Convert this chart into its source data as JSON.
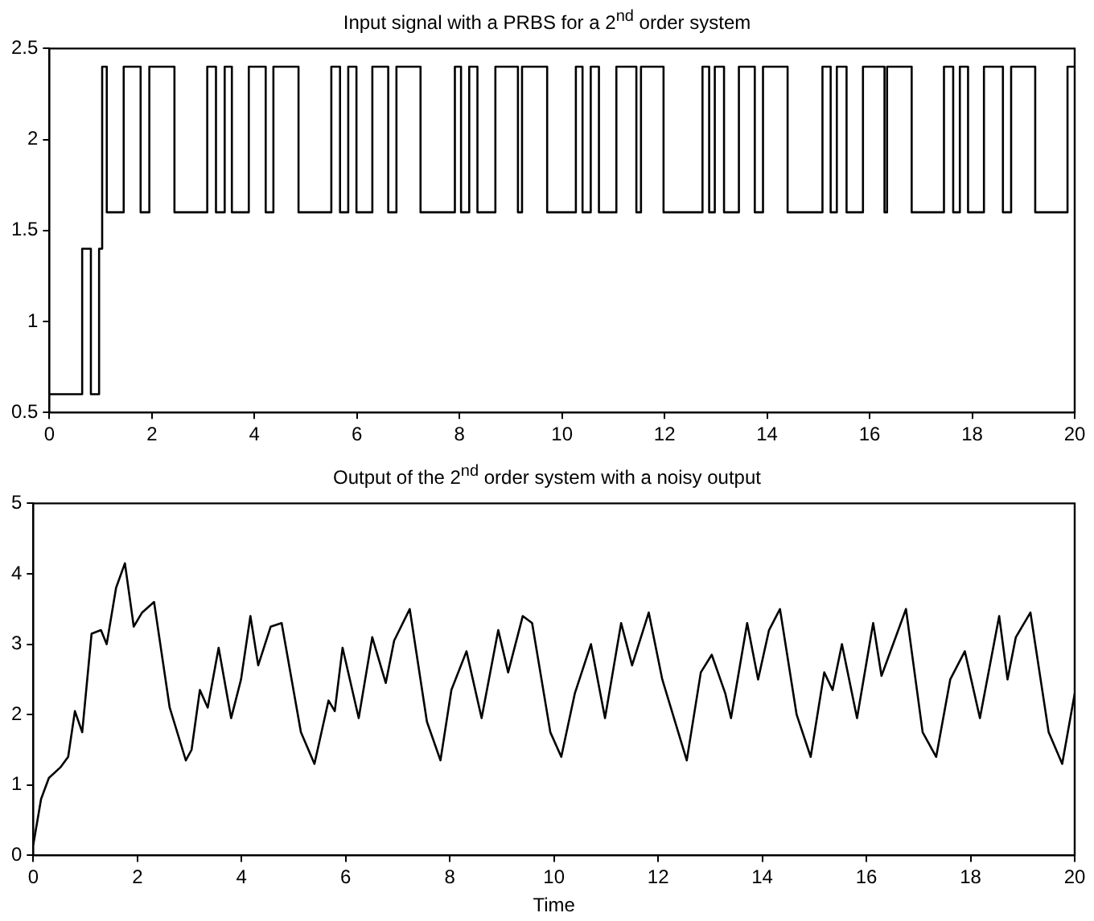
{
  "chart_data": [
    {
      "type": "step",
      "title": "Input signal with a PRBS for a 2$^{nd}$ order system",
      "xlim": [
        0,
        20
      ],
      "ylim": [
        0.5,
        2.5
      ],
      "xticks": [
        0,
        2,
        4,
        6,
        8,
        10,
        12,
        14,
        16,
        18,
        20
      ],
      "yticks": [
        0.5,
        1,
        1.5,
        2,
        2.5
      ],
      "x": [
        0,
        0.64,
        0.81,
        0.97,
        1.03,
        1.12,
        1.45,
        1.78,
        1.95,
        2.44,
        3.08,
        3.25,
        3.42,
        3.56,
        3.89,
        4.22,
        4.37,
        4.86,
        5.5,
        5.67,
        5.83,
        5.99,
        6.3,
        6.61,
        6.77,
        7.24,
        7.91,
        8.03,
        8.19,
        8.35,
        8.7,
        9.14,
        9.22,
        9.71,
        10.27,
        10.4,
        10.56,
        10.72,
        11.06,
        11.45,
        11.54,
        11.98,
        12.74,
        12.87,
        12.98,
        13.16,
        13.45,
        13.76,
        13.92,
        14.4,
        15.08,
        15.24,
        15.36,
        15.55,
        15.87,
        16.29,
        16.34,
        16.82,
        17.45,
        17.63,
        17.76,
        17.92,
        18.23,
        18.6,
        18.76,
        19.23,
        19.86,
        20
      ],
      "series": [
        {
          "color": "#000000",
          "values": [
            0.6,
            1.4,
            0.6,
            1.4,
            2.4,
            1.6,
            2.4,
            1.6,
            2.4,
            1.6,
            2.4,
            1.6,
            2.4,
            1.6,
            2.4,
            1.6,
            2.4,
            1.6,
            2.4,
            1.6,
            2.4,
            1.6,
            2.4,
            1.6,
            2.4,
            1.6,
            2.4,
            1.6,
            2.4,
            1.6,
            2.4,
            1.6,
            2.4,
            1.6,
            2.4,
            1.6,
            2.4,
            1.6,
            2.4,
            1.6,
            2.4,
            1.6,
            2.4,
            1.6,
            2.4,
            1.6,
            2.4,
            1.6,
            2.4,
            1.6,
            2.4,
            1.6,
            2.4,
            1.6,
            2.4,
            1.6,
            2.4,
            1.6,
            2.4,
            1.6,
            2.4,
            1.6,
            2.4,
            1.6,
            2.4,
            1.6,
            2.4,
            2.4
          ]
        }
      ]
    },
    {
      "type": "line",
      "title": "Output of the 2$^{nd}$ order system with a noisy output",
      "xlabel": "Time",
      "xlim": [
        0,
        20
      ],
      "ylim": [
        0,
        5
      ],
      "xticks": [
        0,
        2,
        4,
        6,
        8,
        10,
        12,
        14,
        16,
        18,
        20
      ],
      "yticks": [
        0,
        1,
        2,
        3,
        4,
        5
      ],
      "x": [
        0,
        0.15,
        0.3,
        0.52,
        0.67,
        0.8,
        0.94,
        1.12,
        1.3,
        1.41,
        1.59,
        1.76,
        1.93,
        2.09,
        2.32,
        2.62,
        2.93,
        3.04,
        3.2,
        3.35,
        3.56,
        3.8,
        3.99,
        4.17,
        4.32,
        4.56,
        4.77,
        5.14,
        5.4,
        5.67,
        5.79,
        5.94,
        6.25,
        6.51,
        6.77,
        6.93,
        7.23,
        7.56,
        7.82,
        8.03,
        8.32,
        8.61,
        8.93,
        9.12,
        9.4,
        9.58,
        9.93,
        10.14,
        10.4,
        10.71,
        10.98,
        11.29,
        11.5,
        11.82,
        12.08,
        12.55,
        12.82,
        13.03,
        13.29,
        13.4,
        13.71,
        13.92,
        14.13,
        14.34,
        14.66,
        14.93,
        15.19,
        15.35,
        15.53,
        15.82,
        16.13,
        16.29,
        16.76,
        17.08,
        17.34,
        17.61,
        17.89,
        18.18,
        18.55,
        18.71,
        18.87,
        19.15,
        19.5,
        19.76,
        20
      ],
      "series": [
        {
          "color": "#000000",
          "values": [
            0.15,
            0.8,
            1.1,
            1.25,
            1.4,
            2.05,
            1.75,
            3.15,
            3.2,
            3.0,
            3.8,
            4.15,
            3.25,
            3.45,
            3.6,
            2.1,
            1.35,
            1.5,
            2.35,
            2.1,
            2.95,
            1.95,
            2.5,
            3.4,
            2.7,
            3.25,
            3.3,
            1.75,
            1.3,
            2.2,
            2.05,
            2.95,
            1.95,
            3.1,
            2.45,
            3.05,
            3.5,
            1.9,
            1.35,
            2.35,
            2.9,
            1.95,
            3.2,
            2.6,
            3.4,
            3.3,
            1.75,
            1.4,
            2.3,
            3.0,
            1.95,
            3.3,
            2.7,
            3.45,
            2.5,
            1.35,
            2.6,
            2.85,
            2.3,
            1.95,
            3.3,
            2.5,
            3.2,
            3.5,
            2.0,
            1.4,
            2.6,
            2.35,
            3.0,
            1.95,
            3.3,
            2.55,
            3.5,
            1.75,
            1.4,
            2.5,
            2.9,
            1.95,
            3.4,
            2.5,
            3.1,
            3.45,
            1.75,
            1.3,
            2.3
          ]
        }
      ]
    }
  ]
}
